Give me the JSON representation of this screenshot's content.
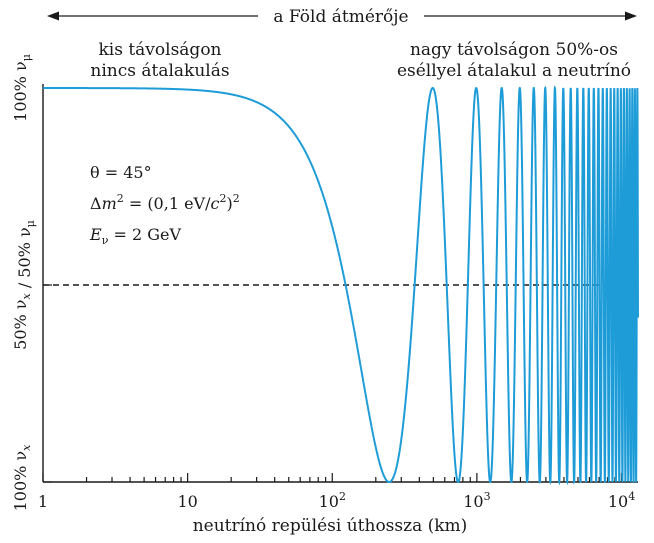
{
  "chart_data": {
    "type": "line",
    "xscale": "log",
    "xlim": [
      1,
      13000
    ],
    "ylim": [
      0,
      1
    ],
    "grid": false,
    "legend": "none",
    "xlabel": "neutrínó repülési úthossza (km)",
    "xticks": [
      {
        "value": 1,
        "base": "1",
        "exp": ""
      },
      {
        "value": 10,
        "base": "10",
        "exp": ""
      },
      {
        "value": 100,
        "base": "10",
        "exp": "2"
      },
      {
        "value": 1000,
        "base": "10",
        "exp": "3"
      },
      {
        "value": 10000,
        "base": "10",
        "exp": "4"
      }
    ],
    "yticks": [
      {
        "value": 0,
        "text": "100% ν",
        "sub": "x"
      },
      {
        "value": 0.5,
        "text": "50% ν",
        "sub": "x",
        "text2": " / 50% ν",
        "sub2": "μ"
      },
      {
        "value": 1,
        "text": "100% ν",
        "sub": "μ"
      }
    ],
    "reference_line": {
      "y": 0.5,
      "style": "dashed"
    },
    "series": [
      {
        "formula": "P(nu_mu) = 1 - sin^2(2θ)·sin^2(1.27·Δm²·L/E)",
        "theta_deg": 45,
        "dm2_eV2": 0.01,
        "E_GeV": 2,
        "color": "#1e9cd8"
      }
    ],
    "earth_diameter": {
      "label": "a Föld átmérője"
    },
    "annotations": {
      "left_line1": "kis távolságon",
      "left_line2": "nincs átalakulás",
      "right_line1": "nagy távolságon 50%-os",
      "right_line2": "eséllyel átalakul a neutrínó"
    },
    "params": {
      "theta": {
        "sym": "θ",
        "rest": " = 45°"
      },
      "dm2": {
        "delta": "Δ",
        "m": "m",
        "two": "2",
        "mid": " = (0,1 eV/",
        "c": "c",
        "two2": "2",
        "close": ")",
        "two3": "2"
      },
      "energy": {
        "E": "E",
        "sub": "ν",
        "rest": " = 2 GeV"
      }
    }
  }
}
